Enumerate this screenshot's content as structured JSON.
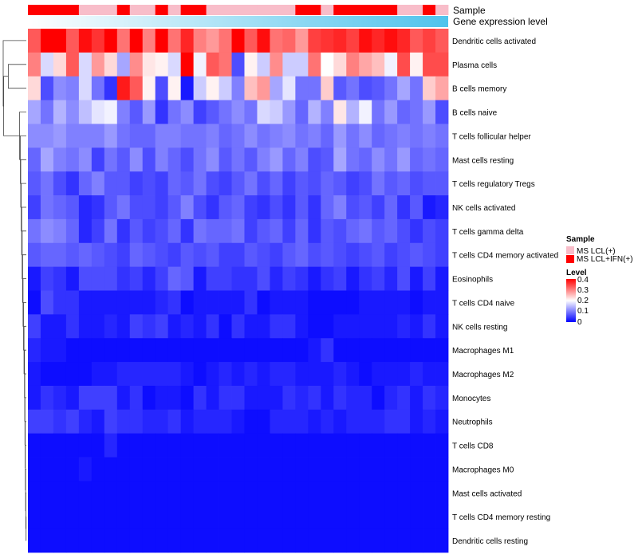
{
  "chart_data": {
    "type": "heatmap",
    "title": "",
    "annotations": {
      "sample": {
        "label": "Sample",
        "levels": [
          "MS LCL(+)",
          "MS LCL+IFN(+)"
        ],
        "colors": [
          "#f8bdc9",
          "#ff0000"
        ],
        "per_column": [
          1,
          1,
          1,
          1,
          0,
          0,
          0,
          1,
          0,
          0,
          1,
          0,
          1,
          1,
          0,
          0,
          0,
          0,
          0,
          0,
          0,
          1,
          1,
          0,
          1,
          1,
          1,
          1,
          1,
          0,
          0,
          1,
          0
        ]
      },
      "gene_expression_level": {
        "label": "Gene expression level",
        "gradient": [
          "#ffffff",
          "#4fc3ec"
        ]
      }
    },
    "legend": {
      "sample_title": "Sample",
      "level_title": "Level",
      "level_ticks": [
        "0.4",
        "0.3",
        "0.2",
        "0.1",
        "0"
      ],
      "level_range": [
        0,
        0.4
      ],
      "placement": "right"
    },
    "color_scale": {
      "low": "#0000ff",
      "mid": "#ffffff",
      "high": "#ff0000",
      "domain": [
        0,
        0.2,
        0.4
      ]
    },
    "rows": [
      "Dendritic cells activated",
      "Plasma cells",
      "B cells memory",
      "B cells naive",
      "T cells follicular helper",
      "Mast cells resting",
      "T cells regulatory  Tregs",
      "NK cells activated",
      "T cells gamma delta",
      "T cells CD4 memory activated",
      "Eosinophils",
      "T cells CD4 naive",
      "NK cells resting",
      "Macrophages M1",
      "Macrophages M2",
      "Monocytes",
      "Neutrophils",
      "T cells CD8",
      "Macrophages M0",
      "Mast cells activated",
      "T cells CD4 memory resting",
      "Dendritic cells resting"
    ],
    "values": [
      [
        0.33,
        0.4,
        0.4,
        0.33,
        0.39,
        0.36,
        0.4,
        0.31,
        0.4,
        0.3,
        0.4,
        0.31,
        0.37,
        0.3,
        0.28,
        0.31,
        0.4,
        0.33,
        0.39,
        0.31,
        0.32,
        0.28,
        0.35,
        0.36,
        0.37,
        0.35,
        0.39,
        0.37,
        0.39,
        0.37,
        0.33,
        0.35,
        0.33
      ],
      [
        0.3,
        0.17,
        0.23,
        0.33,
        0.17,
        0.28,
        0.23,
        0.13,
        0.29,
        0.22,
        0.21,
        0.17,
        0.4,
        0.19,
        0.33,
        0.31,
        0.06,
        0.21,
        0.16,
        0.29,
        0.16,
        0.16,
        0.31,
        0.2,
        0.23,
        0.3,
        0.27,
        0.25,
        0.19,
        0.34,
        0.21,
        0.34,
        0.34
      ],
      [
        0.23,
        0.06,
        0.11,
        0.1,
        0.17,
        0.09,
        0.04,
        0.38,
        0.33,
        0.21,
        0.06,
        0.21,
        0.02,
        0.16,
        0.21,
        0.16,
        0.1,
        0.25,
        0.28,
        0.13,
        0.18,
        0.09,
        0.09,
        0.24,
        0.07,
        0.09,
        0.06,
        0.07,
        0.09,
        0.13,
        0.09,
        0.24,
        0.27
      ],
      [
        0.13,
        0.09,
        0.14,
        0.11,
        0.15,
        0.18,
        0.19,
        0.1,
        0.07,
        0.12,
        0.04,
        0.09,
        0.11,
        0.05,
        0.07,
        0.09,
        0.11,
        0.09,
        0.17,
        0.16,
        0.12,
        0.08,
        0.14,
        0.1,
        0.22,
        0.14,
        0.19,
        0.09,
        0.12,
        0.08,
        0.09,
        0.12,
        0.06
      ],
      [
        0.11,
        0.11,
        0.12,
        0.1,
        0.1,
        0.1,
        0.12,
        0.09,
        0.08,
        0.08,
        0.1,
        0.1,
        0.09,
        0.09,
        0.1,
        0.08,
        0.09,
        0.11,
        0.09,
        0.1,
        0.11,
        0.09,
        0.1,
        0.08,
        0.12,
        0.09,
        0.11,
        0.08,
        0.09,
        0.1,
        0.09,
        0.1,
        0.09
      ],
      [
        0.08,
        0.13,
        0.1,
        0.09,
        0.11,
        0.05,
        0.09,
        0.07,
        0.11,
        0.06,
        0.1,
        0.08,
        0.06,
        0.09,
        0.11,
        0.07,
        0.09,
        0.07,
        0.1,
        0.12,
        0.08,
        0.1,
        0.06,
        0.07,
        0.13,
        0.09,
        0.08,
        0.11,
        0.09,
        0.12,
        0.08,
        0.09,
        0.08
      ],
      [
        0.07,
        0.09,
        0.06,
        0.04,
        0.08,
        0.1,
        0.07,
        0.07,
        0.05,
        0.06,
        0.05,
        0.08,
        0.07,
        0.09,
        0.06,
        0.05,
        0.07,
        0.09,
        0.06,
        0.08,
        0.05,
        0.07,
        0.06,
        0.08,
        0.07,
        0.05,
        0.06,
        0.09,
        0.07,
        0.08,
        0.06,
        0.07,
        0.07
      ],
      [
        0.05,
        0.09,
        0.08,
        0.07,
        0.03,
        0.04,
        0.07,
        0.09,
        0.06,
        0.06,
        0.05,
        0.07,
        0.1,
        0.06,
        0.04,
        0.07,
        0.08,
        0.05,
        0.04,
        0.06,
        0.04,
        0.07,
        0.04,
        0.08,
        0.1,
        0.06,
        0.07,
        0.05,
        0.08,
        0.04,
        0.07,
        0.02,
        0.03
      ],
      [
        0.09,
        0.11,
        0.1,
        0.08,
        0.03,
        0.05,
        0.09,
        0.04,
        0.07,
        0.05,
        0.06,
        0.08,
        0.04,
        0.09,
        0.08,
        0.08,
        0.09,
        0.05,
        0.07,
        0.08,
        0.05,
        0.08,
        0.04,
        0.07,
        0.06,
        0.08,
        0.09,
        0.07,
        0.08,
        0.06,
        0.04,
        0.06,
        0.05
      ],
      [
        0.07,
        0.08,
        0.08,
        0.07,
        0.08,
        0.07,
        0.06,
        0.05,
        0.08,
        0.07,
        0.06,
        0.05,
        0.07,
        0.06,
        0.07,
        0.05,
        0.05,
        0.07,
        0.06,
        0.05,
        0.07,
        0.08,
        0.06,
        0.07,
        0.06,
        0.05,
        0.06,
        0.07,
        0.05,
        0.06,
        0.07,
        0.06,
        0.05
      ],
      [
        0.02,
        0.05,
        0.04,
        0.02,
        0.06,
        0.06,
        0.06,
        0.04,
        0.05,
        0.03,
        0.05,
        0.08,
        0.07,
        0.02,
        0.05,
        0.05,
        0.04,
        0.04,
        0.06,
        0.03,
        0.05,
        0.04,
        0.02,
        0.04,
        0.05,
        0.02,
        0.04,
        0.05,
        0.03,
        0.06,
        0.02,
        0.05,
        0.02
      ],
      [
        0.01,
        0.06,
        0.04,
        0.04,
        0.02,
        0.02,
        0.02,
        0.02,
        0.02,
        0.02,
        0.03,
        0.04,
        0.01,
        0.02,
        0.02,
        0.02,
        0.02,
        0.04,
        0.01,
        0.02,
        0.02,
        0.02,
        0.01,
        0.01,
        0.01,
        0.01,
        0.02,
        0.02,
        0.02,
        0.02,
        0.01,
        0.02,
        0.02
      ],
      [
        0.05,
        0.02,
        0.02,
        0.04,
        0.02,
        0.02,
        0.03,
        0.02,
        0.05,
        0.04,
        0.05,
        0.02,
        0.03,
        0.02,
        0.04,
        0.01,
        0.04,
        0.02,
        0.02,
        0.04,
        0.04,
        0.02,
        0.01,
        0.01,
        0.02,
        0.02,
        0.02,
        0.02,
        0.02,
        0.03,
        0.02,
        0.04,
        0.02
      ],
      [
        0.03,
        0.02,
        0.02,
        0.01,
        0.01,
        0.01,
        0.01,
        0.01,
        0.01,
        0.01,
        0.01,
        0.01,
        0.01,
        0.01,
        0.01,
        0.01,
        0.01,
        0.01,
        0.01,
        0.01,
        0.01,
        0.01,
        0.02,
        0.04,
        0.01,
        0.01,
        0.01,
        0.01,
        0.01,
        0.01,
        0.01,
        0.01,
        0.01
      ],
      [
        0.02,
        0.01,
        0.01,
        0.01,
        0.01,
        0.02,
        0.02,
        0.03,
        0.03,
        0.03,
        0.03,
        0.03,
        0.02,
        0.01,
        0.02,
        0.03,
        0.02,
        0.03,
        0.02,
        0.03,
        0.03,
        0.02,
        0.02,
        0.02,
        0.03,
        0.02,
        0.01,
        0.02,
        0.02,
        0.02,
        0.03,
        0.02,
        0.02
      ],
      [
        0.02,
        0.04,
        0.03,
        0.02,
        0.05,
        0.05,
        0.05,
        0.02,
        0.04,
        0.01,
        0.02,
        0.02,
        0.01,
        0.04,
        0.02,
        0.04,
        0.04,
        0.02,
        0.02,
        0.02,
        0.04,
        0.03,
        0.04,
        0.02,
        0.04,
        0.03,
        0.03,
        0.01,
        0.03,
        0.04,
        0.02,
        0.04,
        0.03
      ],
      [
        0.05,
        0.05,
        0.04,
        0.05,
        0.03,
        0.02,
        0.05,
        0.04,
        0.04,
        0.03,
        0.03,
        0.04,
        0.02,
        0.03,
        0.03,
        0.03,
        0.02,
        0.01,
        0.01,
        0.03,
        0.03,
        0.03,
        0.02,
        0.03,
        0.02,
        0.03,
        0.03,
        0.03,
        0.04,
        0.04,
        0.02,
        0.03,
        0.02
      ],
      [
        0.01,
        0.01,
        0.01,
        0.01,
        0.01,
        0.01,
        0.03,
        0.01,
        0.01,
        0.01,
        0.01,
        0.01,
        0.01,
        0.01,
        0.01,
        0.01,
        0.01,
        0.01,
        0.01,
        0.01,
        0.01,
        0.01,
        0.01,
        0.01,
        0.01,
        0.01,
        0.01,
        0.01,
        0.01,
        0.01,
        0.01,
        0.01,
        0.01
      ],
      [
        0.01,
        0.01,
        0.01,
        0.01,
        0.02,
        0.01,
        0.01,
        0.01,
        0.01,
        0.01,
        0.01,
        0.01,
        0.01,
        0.01,
        0.01,
        0.01,
        0.01,
        0.01,
        0.01,
        0.01,
        0.01,
        0.01,
        0.01,
        0.01,
        0.01,
        0.01,
        0.01,
        0.01,
        0.01,
        0.01,
        0.01,
        0.01,
        0.01
      ],
      [
        0.01,
        0.01,
        0.01,
        0.01,
        0.01,
        0.01,
        0.01,
        0.01,
        0.01,
        0.01,
        0.01,
        0.01,
        0.01,
        0.01,
        0.01,
        0.01,
        0.01,
        0.01,
        0.01,
        0.01,
        0.01,
        0.01,
        0.01,
        0.01,
        0.01,
        0.01,
        0.01,
        0.01,
        0.01,
        0.01,
        0.01,
        0.01,
        0.01
      ],
      [
        0.01,
        0.01,
        0.01,
        0.01,
        0.01,
        0.01,
        0.01,
        0.01,
        0.01,
        0.01,
        0.01,
        0.01,
        0.01,
        0.01,
        0.01,
        0.01,
        0.01,
        0.01,
        0.01,
        0.01,
        0.01,
        0.01,
        0.01,
        0.01,
        0.01,
        0.01,
        0.01,
        0.01,
        0.01,
        0.01,
        0.01,
        0.01,
        0.01
      ],
      [
        0.01,
        0.01,
        0.01,
        0.01,
        0.01,
        0.01,
        0.01,
        0.01,
        0.01,
        0.01,
        0.01,
        0.01,
        0.01,
        0.01,
        0.01,
        0.01,
        0.01,
        0.01,
        0.01,
        0.01,
        0.01,
        0.01,
        0.01,
        0.01,
        0.01,
        0.01,
        0.01,
        0.01,
        0.01,
        0.01,
        0.01,
        0.01,
        0.01
      ]
    ],
    "row_dendrogram": {
      "merges": [
        [
          20,
          21
        ],
        [
          19,
          22
        ],
        [
          18,
          23
        ],
        [
          17,
          24
        ],
        [
          16,
          25
        ],
        [
          15,
          26
        ],
        [
          14,
          27
        ],
        [
          13,
          28
        ],
        [
          12,
          29
        ],
        [
          11,
          30
        ],
        [
          10,
          31
        ],
        [
          9,
          32
        ],
        [
          8,
          33
        ],
        [
          7,
          34
        ],
        [
          6,
          35
        ],
        [
          5,
          36
        ],
        [
          4,
          37
        ],
        [
          3,
          38
        ],
        [
          1,
          2
        ],
        [
          39,
          40
        ],
        [
          0,
          41
        ]
      ],
      "heights": [
        0.01,
        0.02,
        0.03,
        0.04,
        0.05,
        0.06,
        0.07,
        0.08,
        0.1,
        0.12,
        0.14,
        0.16,
        0.18,
        0.2,
        0.22,
        0.24,
        0.26,
        0.29,
        0.78,
        0.98,
        1.0
      ]
    }
  }
}
